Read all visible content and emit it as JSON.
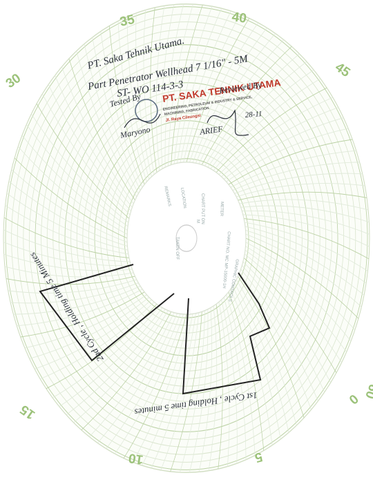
{
  "header_handwriting": [
    "PT. Saka Tehnik Utama.",
    "Part Penetrator Wellhead 7 1/16\" - 5M",
    "ST- WO 114-3-3"
  ],
  "signatures": {
    "tested_by": "Tested By",
    "tester": "Maryono",
    "reviewed_by": "Reviewed By",
    "reviewer": "ARIEF",
    "date": "28-11"
  },
  "stamp": {
    "company": "PT. SAKA TEHNIK UTAMA",
    "line1": "ENGINEERING, PETROLEUM & INDUSTRY & SERVICE,",
    "line2": "MACHINING, FABRICATION",
    "line3": "Jl. Raya Cileungsi"
  },
  "time_labels": [
    "35",
    "40",
    "45",
    "30",
    "15",
    "10",
    "5",
    "0",
    "60"
  ],
  "card": {
    "remarks": "REMARKS",
    "location": "LOCATION",
    "chart_put_on": "CHART PUT ON",
    "m": "M",
    "meter": "METER",
    "taken_off": "TAKEN OFF",
    "chart_no": "CHART NO. MC MP-15000-1H",
    "maker": "GRAPHIC CONTROLS"
  },
  "annotations": [
    "2nd Cycle , Holding time 5 Minutes",
    "1st Cycle , Holding time 5 minutes"
  ]
}
